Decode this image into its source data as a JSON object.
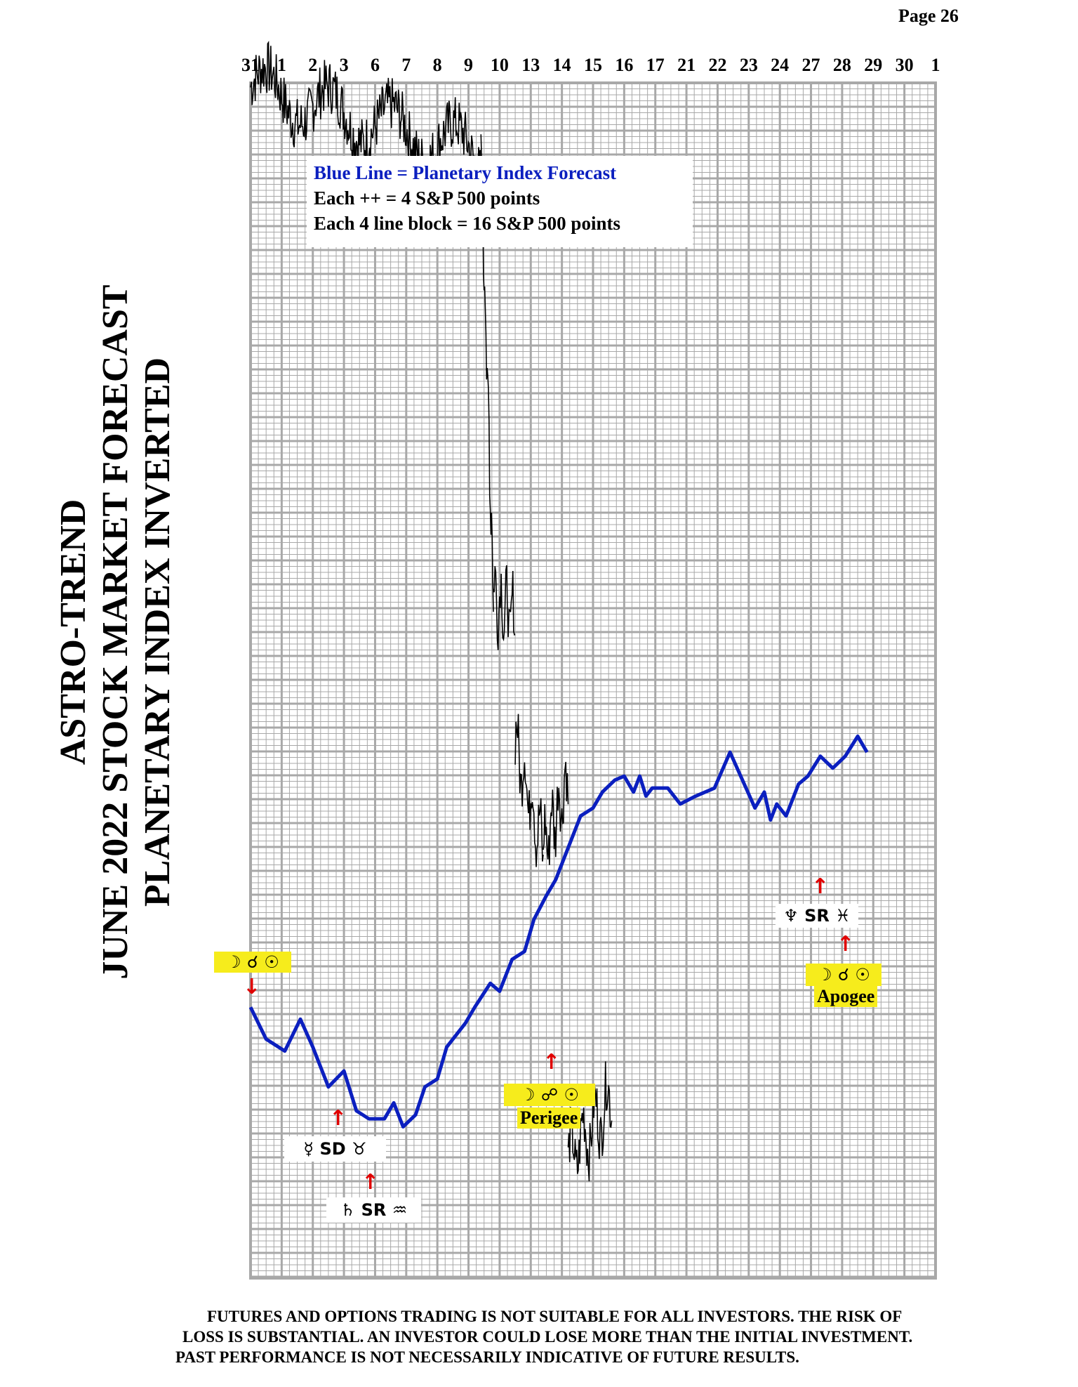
{
  "page": {
    "label": "Page  26"
  },
  "title": {
    "line1": "ASTRO-TREND",
    "line2": "JUNE 2022  STOCK MARKET FORECAST",
    "line3": "PLANETARY INDEX INVERTED"
  },
  "legend": {
    "line1": "Blue Line = Planetary Index Forecast",
    "line2": "Each ++ =  4 S&P 500 points",
    "line3": "Each 4 line block =  16  S&P 500 points"
  },
  "colors": {
    "forecast_line": "#0b1fbf",
    "price_line": "#000000",
    "highlight": "#f6ec1c",
    "arrow": "#e00000",
    "grid": "#a8a8a8"
  },
  "annotations": {
    "a1_glyphs": "☽ ☌ ☉",
    "a2_glyphs": "☿ SD ♉",
    "a3_glyphs": "♄ SR ♒",
    "a4_glyphs": "☽ ☍ ☉",
    "a4_label": "Perigee",
    "a5_glyphs": "♆ SR ♓",
    "a6_glyphs": "☽ ☌ ☉",
    "a6_label": "Apogee",
    "arrow_down": "↓",
    "arrow_up": "↑"
  },
  "disclaimer": {
    "line1": "FUTURES AND OPTIONS TRADING IS NOT SUITABLE FOR ALL INVESTORS.  THE RISK OF",
    "line2": "LOSS IS SUBSTANTIAL.  AN INVESTOR COULD LOSE MORE THAN THE INITIAL INVESTMENT.",
    "line3": "PAST PERFORMANCE IS NOT NECESSARILY INDICATIVE OF FUTURE RESULTS."
  },
  "chart_data": {
    "type": "line",
    "x_labels": [
      "31",
      "1",
      "2",
      "3",
      "6",
      "7",
      "8",
      "9",
      "10",
      "13",
      "14",
      "15",
      "16",
      "17",
      "21",
      "22",
      "23",
      "24",
      "27",
      "28",
      "29",
      "30",
      "1"
    ],
    "grid": true,
    "series": [
      {
        "kind": "forecast",
        "values": [
          [
            0,
            68
          ],
          [
            0.5,
            60
          ],
          [
            1.1,
            57
          ],
          [
            1.6,
            65
          ],
          [
            2.0,
            58
          ],
          [
            2.5,
            48
          ],
          [
            3.0,
            52
          ],
          [
            3.4,
            42
          ],
          [
            3.8,
            40
          ],
          [
            4.3,
            40
          ],
          [
            4.6,
            44
          ],
          [
            4.9,
            38
          ],
          [
            5.3,
            41
          ],
          [
            5.6,
            48
          ],
          [
            6.0,
            50
          ],
          [
            6.3,
            58
          ],
          [
            6.6,
            61
          ],
          [
            6.9,
            64
          ],
          [
            7.2,
            68
          ],
          [
            7.7,
            74
          ],
          [
            8.0,
            72
          ],
          [
            8.4,
            80
          ],
          [
            8.8,
            82
          ],
          [
            9.1,
            90
          ],
          [
            9.5,
            96
          ],
          [
            9.8,
            100
          ],
          [
            10.2,
            108
          ],
          [
            10.6,
            116
          ],
          [
            11.0,
            118
          ],
          [
            11.3,
            122
          ],
          [
            11.7,
            125
          ],
          [
            12.0,
            126
          ],
          [
            12.3,
            122
          ],
          [
            12.5,
            126
          ],
          [
            12.7,
            121
          ],
          [
            12.9,
            123
          ],
          [
            13.4,
            123
          ],
          [
            13.8,
            119
          ],
          [
            14.3,
            121
          ],
          [
            14.9,
            123
          ],
          [
            15.4,
            132
          ],
          [
            15.8,
            125
          ],
          [
            16.2,
            118
          ],
          [
            16.5,
            122
          ],
          [
            16.7,
            115
          ],
          [
            16.9,
            119
          ],
          [
            17.2,
            116
          ],
          [
            17.6,
            124
          ],
          [
            17.9,
            126
          ],
          [
            18.3,
            131
          ],
          [
            18.7,
            128
          ],
          [
            19.1,
            131
          ],
          [
            19.5,
            136
          ],
          [
            19.8,
            132
          ]
        ]
      },
      {
        "kind": "price",
        "segments": [
          {
            "x_start": 0,
            "x_end": 7.4,
            "y_start": 299,
            "y_end": 282
          },
          {
            "x_start": 7.4,
            "x_end": 7.8,
            "y_start": 282,
            "y_end": 172
          },
          {
            "x_start": 7.8,
            "x_end": 8.5,
            "y_start": 172,
            "y_end": 165
          },
          {
            "x_start": 8.5,
            "x_end": 9.4,
            "y_start": 135,
            "y_end": 108
          },
          {
            "x_start": 9.4,
            "x_end": 10.2,
            "y_start": 108,
            "y_end": 125
          },
          {
            "x_start": 10.2,
            "x_end": 11.6,
            "y_start": 30,
            "y_end": 45
          }
        ]
      }
    ]
  }
}
